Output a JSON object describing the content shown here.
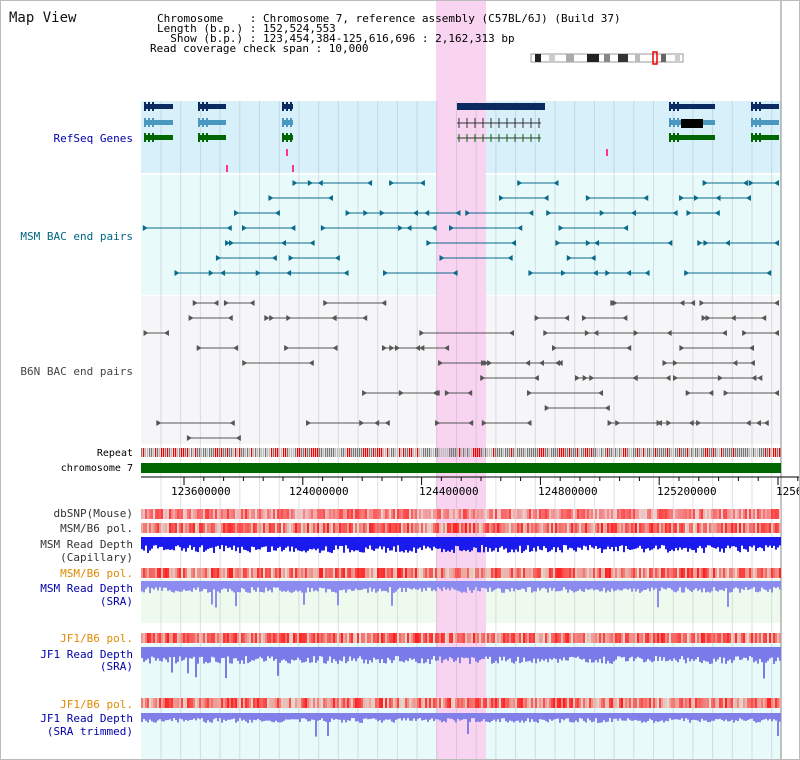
{
  "header": {
    "title": "Map View",
    "chromosome_line": "Chromosome    : Chromosome 7, reference assembly (C57BL/6J) (Build 37)",
    "length_line": "Length (b.p.) : 152,524,553",
    "show_line": "  Show (b.p.) : 123,454,384-125,616,696 : 2,162,313 bp",
    "coverage_line": "Read coverage check span : 10,000"
  },
  "tracks": {
    "refseq": "RefSeq Genes",
    "msm_bac": "MSM BAC end pairs",
    "b6n_bac": "B6N BAC end pairs",
    "repeat": "Repeat",
    "chromosome": "chromosome 7",
    "dbsnp": "dbSNP(Mouse)",
    "msm_b6_pol": "MSM/B6 pol.",
    "msm_depth_cap_1": "MSM Read Depth",
    "msm_depth_cap_2": "(Capillary)",
    "msm_b6_pol_2": "MSM/B6 pol.",
    "msm_depth_sra_1": "MSM Read Depth",
    "msm_depth_sra_2": "(SRA)",
    "jf1_b6_pol": "JF1/B6 pol.",
    "jf1_depth_sra_1": "JF1 Read Depth",
    "jf1_depth_sra_2": "(SRA)",
    "jf1_b6_pol_2": "JF1/B6 pol.",
    "jf1_depth_trim_1": "JF1 Read Depth",
    "jf1_depth_trim_2": "(SRA trimmed)"
  },
  "ruler": {
    "ticks": [
      "123600000",
      "124000000",
      "124400000",
      "124800000",
      "125200000",
      "1256"
    ]
  },
  "colors": {
    "refseq_label": "#0000aa",
    "msm_label": "#006680",
    "b6n_label": "#444444",
    "orange_label": "#e08a00",
    "highlight": "#f8d4f0",
    "chromosome_bar": "#006600"
  }
}
